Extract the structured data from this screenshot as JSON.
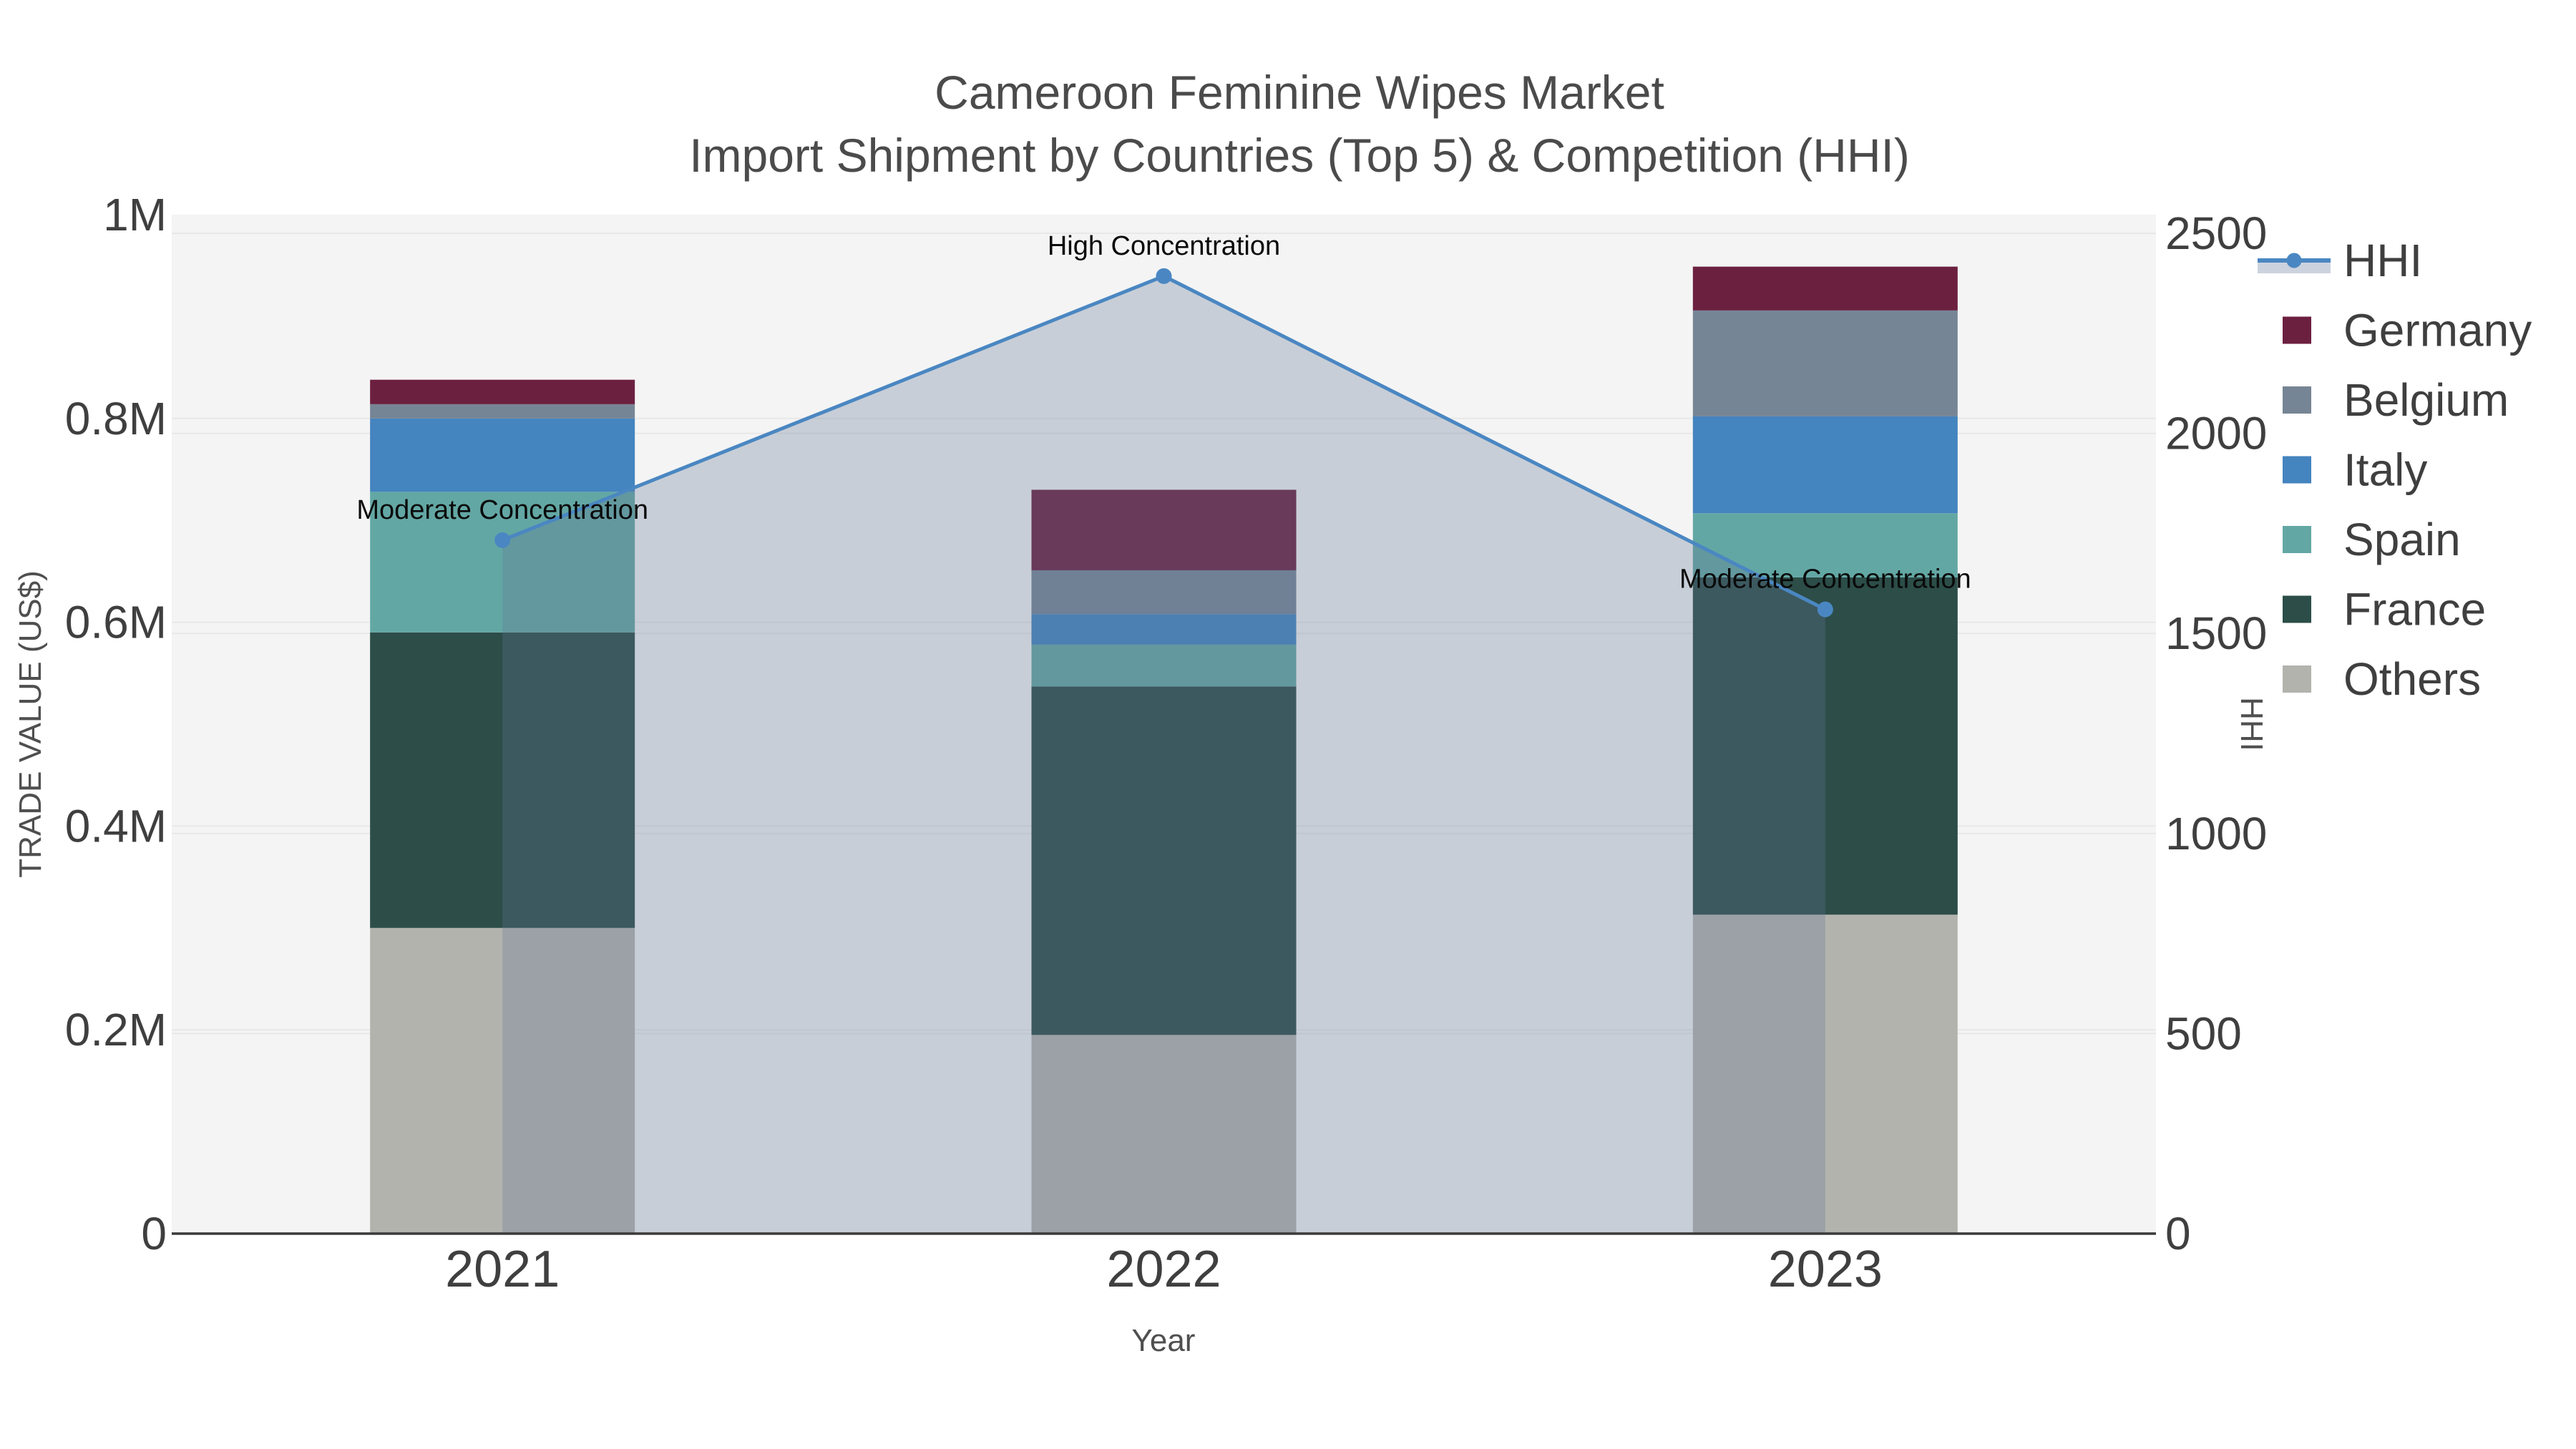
{
  "title": {
    "line1": "Cameroon Feminine Wipes Market",
    "line2": "Import Shipment by Countries (Top 5) & Competition (HHI)"
  },
  "axes": {
    "left_title": "TRADE VALUE (US$)",
    "right_title": "HHI",
    "x_title": "Year",
    "left_ticks": [
      "0",
      "0.2M",
      "0.4M",
      "0.6M",
      "0.8M",
      "1M"
    ],
    "right_ticks": [
      "0",
      "500",
      "1000",
      "1500",
      "2000",
      "2500"
    ],
    "x_ticks": [
      "2021",
      "2022",
      "2023"
    ]
  },
  "legend": {
    "items": [
      {
        "label": "HHI",
        "type": "line",
        "color": "#4a87c2"
      },
      {
        "label": "Germany",
        "type": "swatch",
        "color": "#6c2040"
      },
      {
        "label": "Belgium",
        "type": "swatch",
        "color": "#768595"
      },
      {
        "label": "Italy",
        "type": "swatch",
        "color": "#4484bf"
      },
      {
        "label": "Spain",
        "type": "swatch",
        "color": "#63a7a4"
      },
      {
        "label": "France",
        "type": "swatch",
        "color": "#2c4d48"
      },
      {
        "label": "Others",
        "type": "swatch",
        "color": "#b3b3ae"
      }
    ]
  },
  "colors": {
    "plot_bg": "#f4f4f4",
    "gridline": "#e8e8e8",
    "axis_line": "#3a3a3a",
    "hhi_line": "#4a87c2",
    "hhi_area_fill": "rgba(100,120,150,0.30)"
  },
  "chart_data": {
    "type": "bar",
    "stacked": true,
    "title": "Cameroon Feminine Wipes Market\nImport Shipment by Countries (Top 5) & Competition (HHI)",
    "categories": [
      "2021",
      "2022",
      "2023"
    ],
    "series": [
      {
        "name": "Others",
        "color": "#b3b3ae",
        "values": [
          300000,
          195000,
          313000
        ]
      },
      {
        "name": "France",
        "color": "#2c4d48",
        "values": [
          290000,
          342000,
          331000
        ]
      },
      {
        "name": "Spain",
        "color": "#63a7a4",
        "values": [
          138000,
          41000,
          63000
        ]
      },
      {
        "name": "Italy",
        "color": "#4484bf",
        "values": [
          72000,
          30000,
          95000
        ]
      },
      {
        "name": "Belgium",
        "color": "#768595",
        "values": [
          14000,
          43000,
          104000
        ]
      },
      {
        "name": "Germany",
        "color": "#6c2040",
        "values": [
          24000,
          79000,
          43000
        ]
      }
    ],
    "line_series": {
      "name": "HHI",
      "axis": "right",
      "color": "#4a87c2",
      "area_fill": "rgba(100,120,150,0.30)",
      "values": [
        1733,
        2393,
        1560
      ]
    },
    "annotations": [
      {
        "category": "2021",
        "text": "Moderate Concentration"
      },
      {
        "category": "2022",
        "text": "High Concentration"
      },
      {
        "category": "2023",
        "text": "Moderate Concentration"
      }
    ],
    "xlabel": "Year",
    "ylabel_left": "TRADE VALUE (US$)",
    "ylabel_right": "HHI",
    "ylim_left": [
      0,
      1000000
    ],
    "ylim_right": [
      0,
      2500
    ],
    "legend_position": "right",
    "grid": true
  }
}
